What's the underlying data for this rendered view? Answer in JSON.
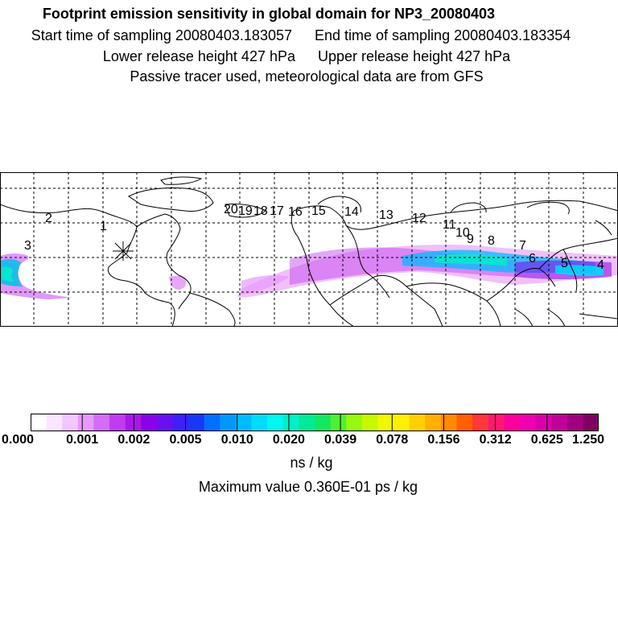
{
  "header": {
    "title": "Footprint emission sensitivity in global domain for NP3_20080403",
    "start_sampling": "Start time of sampling 20080403.183057",
    "end_sampling": "End time of sampling 20080403.183354",
    "lower_release": "Lower release height  427 hPa",
    "upper_release": "Upper release height  427 hPa",
    "tracer_note": "Passive tracer used, meteorological data are from GFS"
  },
  "map": {
    "release_marker": "release-site",
    "day_labels": [
      "1",
      "2",
      "3",
      "4",
      "5",
      "6",
      "7",
      "8",
      "9",
      "10",
      "11",
      "12",
      "13",
      "14",
      "15",
      "16",
      "17",
      "18",
      "19",
      "20"
    ]
  },
  "colorbar": {
    "tick_labels": [
      "0.000",
      "0.001",
      "0.002",
      "0.005",
      "0.010",
      "0.020",
      "0.039",
      "0.078",
      "0.156",
      "0.312",
      "0.625",
      "1.250"
    ],
    "colors": [
      "#ffffff",
      "#fbe6ff",
      "#f3c6ff",
      "#e899ff",
      "#d36cf6",
      "#c03cf0",
      "#a818e8",
      "#8a00e8",
      "#6a10f0",
      "#4020f8",
      "#1838f8",
      "#0070ff",
      "#0098ff",
      "#00bcff",
      "#00dcff",
      "#00f8f0",
      "#00f0c8",
      "#00ea98",
      "#10e860",
      "#50f030",
      "#98f810",
      "#c8f800",
      "#f0f800",
      "#fff000",
      "#ffd000",
      "#ffb000",
      "#ff8a00",
      "#ff6000",
      "#ff3838",
      "#ff1870",
      "#ff00a0",
      "#f000b0",
      "#d800a8",
      "#c00098",
      "#a00080",
      "#800060"
    ],
    "unit": "ns / kg",
    "max_value": "Maximum value  0.360E-01 ps / kg"
  }
}
